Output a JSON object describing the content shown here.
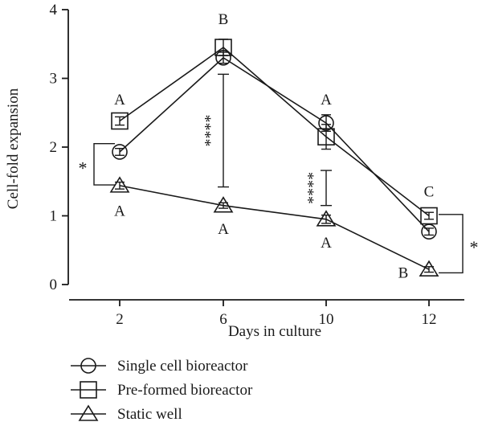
{
  "chart_data": {
    "type": "line",
    "xlabel": "Days in culture",
    "ylabel": "Cell-fold expansion",
    "categories": [
      "2",
      "6",
      "10",
      "12"
    ],
    "yticks": [
      "0",
      "1",
      "2",
      "3",
      "4"
    ],
    "ylim": [
      0,
      4
    ],
    "grid": false,
    "legend_position": "bottom-left",
    "series": [
      {
        "name": "Single cell bioreactor",
        "marker": "circle",
        "values": [
          1.93,
          3.3,
          2.35,
          0.77
        ],
        "errors": [
          0.05,
          0.08,
          0.12,
          0.05
        ]
      },
      {
        "name": "Pre-formed bioreactor",
        "marker": "square",
        "values": [
          2.38,
          3.45,
          2.15,
          1.0
        ],
        "errors": [
          0.06,
          0.12,
          0.18,
          0.05
        ]
      },
      {
        "name": "Static well",
        "marker": "triangle",
        "values": [
          1.44,
          1.15,
          0.95,
          0.22
        ],
        "errors": [
          0.05,
          0.04,
          0.06,
          0.04
        ]
      }
    ],
    "letter_labels": [
      {
        "x": "2",
        "value": 2.7,
        "text": "A"
      },
      {
        "x": "2",
        "value": 1.08,
        "text": "A"
      },
      {
        "x": "6",
        "value": 3.87,
        "text": "B"
      },
      {
        "x": "6",
        "value": 0.82,
        "text": "A"
      },
      {
        "x": "10",
        "value": 2.7,
        "text": "A"
      },
      {
        "x": "10",
        "value": 0.62,
        "text": "A"
      },
      {
        "x": "12",
        "value": 1.36,
        "text": "C"
      },
      {
        "x": "12",
        "value": 0.18,
        "text": "B"
      }
    ],
    "significance_bars": [
      {
        "x": "6",
        "from": 1.42,
        "to": 3.06,
        "label": "****"
      },
      {
        "x": "10",
        "from": 1.15,
        "to": 1.66,
        "label": "****"
      }
    ],
    "brackets": [
      {
        "x": "2",
        "side": "left",
        "from": 1.45,
        "to": 2.05,
        "label": "*"
      },
      {
        "x": "12",
        "side": "right",
        "from": 0.17,
        "to": 1.02,
        "label": "*"
      }
    ]
  }
}
